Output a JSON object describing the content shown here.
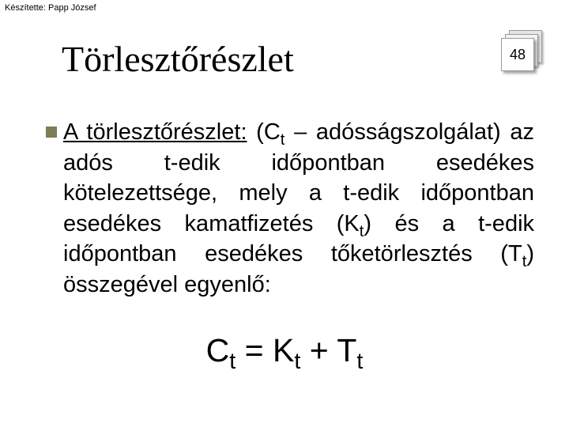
{
  "author_line": "Készítette: Papp József",
  "title": "Törlesztőrészlet",
  "page_number": "48",
  "definition": {
    "lead": "A  törlesztőrészlet:",
    "symbol_open": " (C",
    "sub1": "t",
    "after_sub1": " – adósság­szolgálat) az adós t-edik időpontban esedékes kötelezettsége, mely a t-edik időpontban esedékes kamatfizetés (K",
    "sub2": "t",
    "after_sub2": ") és a t-edik időpontban esedékes tőketörlesztés (T",
    "sub3": "t",
    "after_sub3": ") összegével egyenlő:"
  },
  "formula": {
    "C": "C",
    "Csub": "t",
    "eq": " = ",
    "K": "K",
    "Ksub": "t",
    "plus": " + ",
    "T": "T",
    "Tsub": "t"
  },
  "colors": {
    "bullet": "#7d7d56",
    "text": "#000000",
    "bg": "#ffffff"
  },
  "fonts": {
    "title_family": "Times New Roman",
    "title_size_pt": 34,
    "body_family": "Arial",
    "body_size_pt": 22,
    "formula_size_pt": 31,
    "author_size_pt": 8
  }
}
